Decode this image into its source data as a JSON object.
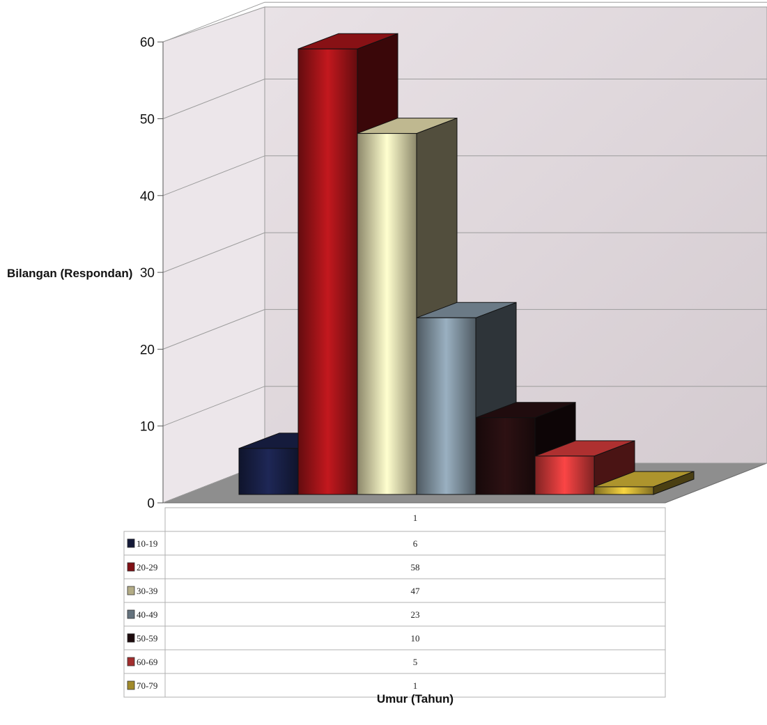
{
  "chart_data": {
    "type": "bar",
    "variant": "3d",
    "ylabel": "Bilangan (Respondan)",
    "xlabel": "Umur (Tahun)",
    "ylim": [
      0,
      60
    ],
    "yticks": [
      "0",
      "10",
      "20",
      "30",
      "40",
      "50",
      "60"
    ],
    "table_header": "1",
    "grid": true,
    "categories": [
      "10-19",
      "20-29",
      "30-39",
      "40-49",
      "50-59",
      "60-69",
      "70-79"
    ],
    "values": [
      6,
      58,
      47,
      23,
      10,
      5,
      1
    ],
    "value_labels": [
      "6",
      "58",
      "47",
      "23",
      "10",
      "5",
      "1"
    ],
    "colors": [
      "#1c2450",
      "#b5161c",
      "#fff5c0",
      "#8fa3b3",
      "#2a1012",
      "#e84040",
      "#e6c53c"
    ]
  }
}
